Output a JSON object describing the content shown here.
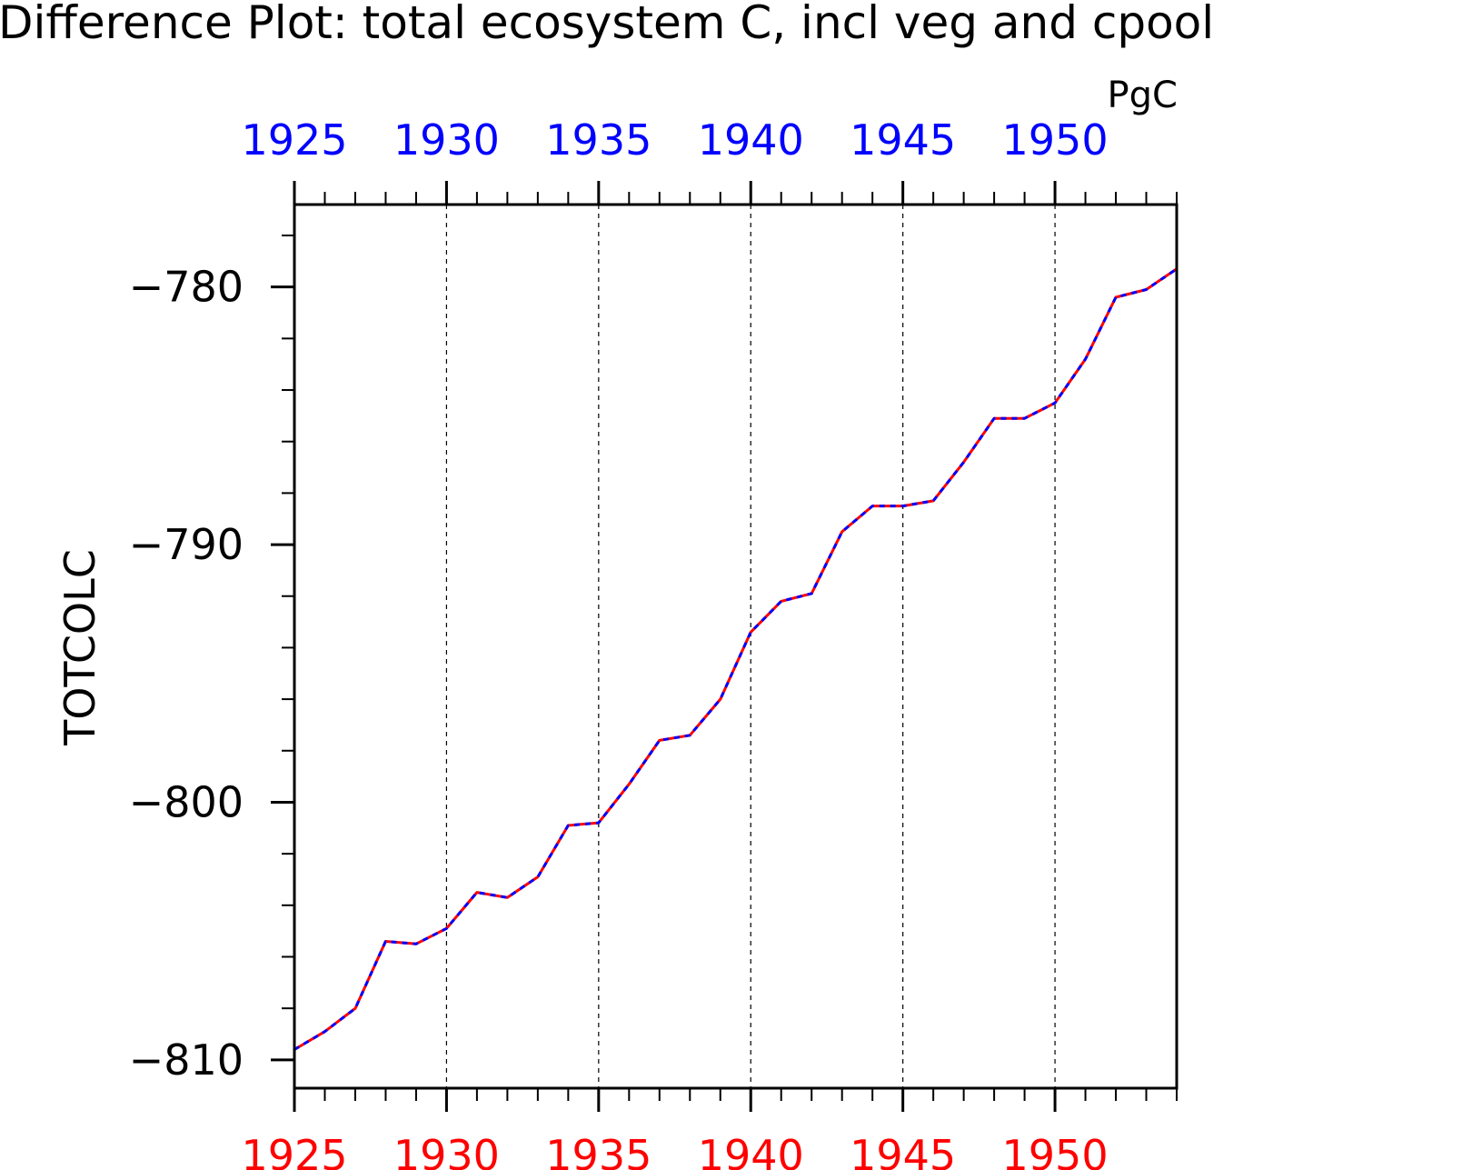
{
  "chart_data": {
    "type": "line",
    "title": "Difference Plot: total ecosystem C, incl veg and cpool",
    "units": "PgC",
    "ylabel": "TOTCOLC",
    "xlabel": "",
    "xlim": [
      1925,
      1954
    ],
    "ylim": [
      -811.1,
      -776.8
    ],
    "x_ticks": [
      1925,
      1930,
      1935,
      1940,
      1945,
      1950
    ],
    "y_ticks": [
      -780,
      -790,
      -800,
      -810
    ],
    "y_tick_labels": [
      "−780",
      "−790",
      "−800",
      "−810"
    ],
    "top_axis_color": "#0000ff",
    "bottom_axis_color": "#ff0000",
    "grid": "vertical dashed at major x ticks",
    "series": [
      {
        "color": "#ff0000",
        "style": "solid",
        "x": [
          1925,
          1926,
          1927,
          1928,
          1929,
          1930,
          1931,
          1932,
          1933,
          1934,
          1935,
          1936,
          1937,
          1938,
          1939,
          1940,
          1941,
          1942,
          1943,
          1944,
          1945,
          1946,
          1947,
          1948,
          1949,
          1950,
          1951,
          1952,
          1953,
          1954
        ],
        "values": [
          -809.6,
          -808.9,
          -808.0,
          -805.4,
          -805.5,
          -804.9,
          -803.5,
          -803.7,
          -802.9,
          -800.9,
          -800.8,
          -799.3,
          -797.6,
          -797.4,
          -796.0,
          -793.4,
          -792.2,
          -791.9,
          -789.5,
          -788.5,
          -788.5,
          -788.3,
          -786.8,
          -785.1,
          -785.1,
          -784.5,
          -782.8,
          -780.4,
          -780.1,
          -779.3
        ]
      },
      {
        "color": "#0000ff",
        "style": "dashed",
        "x": [
          1925,
          1926,
          1927,
          1928,
          1929,
          1930,
          1931,
          1932,
          1933,
          1934,
          1935,
          1936,
          1937,
          1938,
          1939,
          1940,
          1941,
          1942,
          1943,
          1944,
          1945,
          1946,
          1947,
          1948,
          1949,
          1950,
          1951,
          1952,
          1953,
          1954
        ],
        "values": [
          -809.6,
          -808.9,
          -808.0,
          -805.4,
          -805.5,
          -804.9,
          -803.5,
          -803.7,
          -802.9,
          -800.9,
          -800.8,
          -799.3,
          -797.6,
          -797.4,
          -796.0,
          -793.4,
          -792.2,
          -791.9,
          -789.5,
          -788.5,
          -788.5,
          -788.3,
          -786.8,
          -785.1,
          -785.1,
          -784.5,
          -782.8,
          -780.4,
          -780.1,
          -779.3
        ]
      }
    ]
  }
}
